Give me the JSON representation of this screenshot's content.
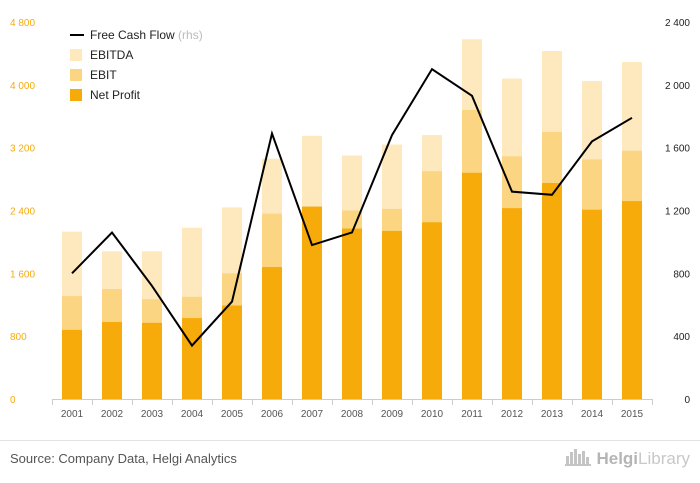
{
  "chart_data": {
    "type": "bar",
    "stacked": false,
    "title": "",
    "categories": [
      "2001",
      "2002",
      "2003",
      "2004",
      "2005",
      "2006",
      "2007",
      "2008",
      "2009",
      "2010",
      "2011",
      "2012",
      "2013",
      "2014",
      "2015"
    ],
    "series": [
      {
        "name": "EBITDA",
        "axis": "left",
        "color": "#fde9bd",
        "values": [
          2130,
          1880,
          1880,
          2180,
          2440,
          3060,
          3350,
          3100,
          3240,
          3360,
          4580,
          4080,
          4430,
          4050,
          4290
        ]
      },
      {
        "name": "EBIT",
        "axis": "left",
        "color": "#fcd582",
        "values": [
          1310,
          1400,
          1270,
          1300,
          1600,
          2360,
          2330,
          2400,
          2420,
          2900,
          3680,
          3090,
          3400,
          3050,
          3160
        ]
      },
      {
        "name": "Net Profit",
        "axis": "left",
        "color": "#f7ab0b",
        "values": [
          880,
          980,
          970,
          1030,
          1190,
          1680,
          2450,
          2170,
          2140,
          2250,
          2880,
          2430,
          2750,
          2410,
          2520
        ]
      },
      {
        "name": "Free Cash Flow",
        "type": "line",
        "axis": "right",
        "color": "#000000",
        "values": [
          800,
          1060,
          720,
          340,
          620,
          1690,
          980,
          1060,
          1680,
          2100,
          1930,
          1320,
          1300,
          1640,
          1790
        ]
      }
    ],
    "legend_rhs_note": "(rhs)",
    "y_left": {
      "ylim": [
        0,
        4800
      ],
      "ticks": [
        "0",
        "800",
        "1 600",
        "2 400",
        "3 200",
        "4 000",
        "4 800"
      ]
    },
    "y_right": {
      "ylim": [
        0,
        2400
      ],
      "ticks": [
        "0",
        "400",
        "800",
        "1 200",
        "1 600",
        "2 000",
        "2 400"
      ]
    },
    "grid": false,
    "legend_position": "top-left"
  },
  "colors": {
    "left_axis_text": "#f7ab0b",
    "right_axis_text": "#222222",
    "category_text": "#555555"
  },
  "footer": {
    "source": "Source: Company Data, Helgi Analytics",
    "brand_bold": "Helgi",
    "brand_light": "Library"
  }
}
